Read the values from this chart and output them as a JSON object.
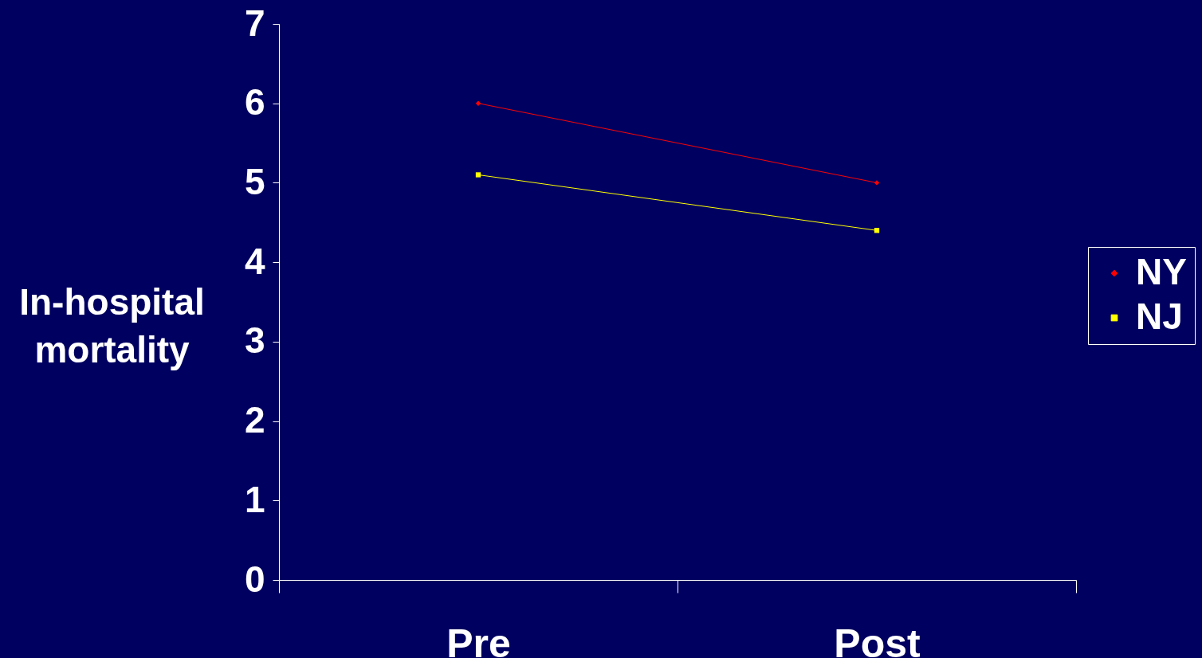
{
  "chart_data": {
    "type": "line",
    "ylabel": "In-hospital mortality",
    "categories": [
      "Pre",
      "Post"
    ],
    "series": [
      {
        "name": "NY",
        "color": "#ff0000",
        "marker": "diamond",
        "values": [
          6.0,
          5.0
        ]
      },
      {
        "name": "NJ",
        "color": "#ffff00",
        "marker": "square",
        "values": [
          5.1,
          4.4
        ]
      }
    ],
    "ylim": [
      0,
      7
    ],
    "yticks": [
      0,
      1,
      2,
      3,
      4,
      5,
      6,
      7
    ],
    "grid": false,
    "legend": "right",
    "line_style": "solid"
  }
}
